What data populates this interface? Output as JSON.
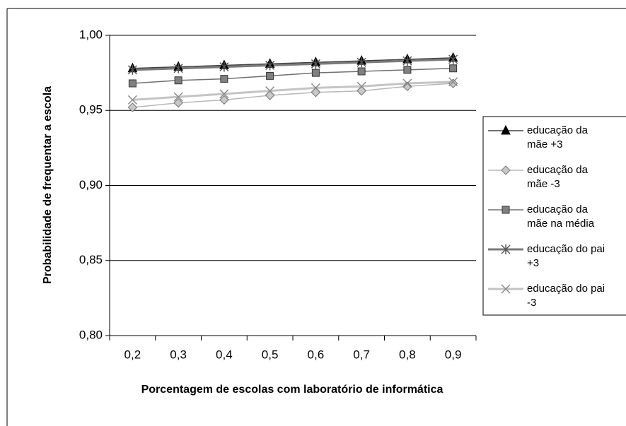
{
  "chart_data": {
    "type": "line",
    "y_label": "Probabilidade de frequentar a escola",
    "x_label": "Porcentagem de escolas com laboratório de informática",
    "categories": [
      "0,2",
      "0,3",
      "0,4",
      "0,5",
      "0,6",
      "0,7",
      "0,8",
      "0,9"
    ],
    "ylim": [
      0.8,
      1.0
    ],
    "yticks": [
      {
        "value": 0.8,
        "label": "0,80"
      },
      {
        "value": 0.85,
        "label": "0,85"
      },
      {
        "value": 0.9,
        "label": "0,90"
      },
      {
        "value": 0.95,
        "label": "0,95"
      },
      {
        "value": 1.0,
        "label": "1,00"
      }
    ],
    "grid": true,
    "legend": "right",
    "series": [
      {
        "name": "educação da mãe +3",
        "color": "#000000",
        "line_color": "#404040",
        "line_width": 1.5,
        "marker": "triangle",
        "values": [
          0.978,
          0.979,
          0.98,
          0.981,
          0.982,
          0.983,
          0.984,
          0.985
        ]
      },
      {
        "name": "educação da mãe -3",
        "color": "#c8c8c8",
        "line_color": "#b8b8b8",
        "line_width": 1.5,
        "marker": "diamond",
        "values": [
          0.952,
          0.955,
          0.957,
          0.96,
          0.962,
          0.963,
          0.966,
          0.968
        ]
      },
      {
        "name": "educação da mãe na média",
        "color": "#808080",
        "line_color": "#707070",
        "line_width": 1.5,
        "marker": "square",
        "values": [
          0.968,
          0.97,
          0.971,
          0.973,
          0.975,
          0.976,
          0.977,
          0.978
        ]
      },
      {
        "name": "educação do pai +3",
        "color": "#555555",
        "line_color": "#7a7a7a",
        "line_width": 3,
        "marker": "asterisk",
        "values": [
          0.977,
          0.978,
          0.979,
          0.98,
          0.981,
          0.982,
          0.983,
          0.984
        ]
      },
      {
        "name": "educação do pai -3",
        "color": "#8a8a8a",
        "line_color": "#c4c4c4",
        "line_width": 3,
        "marker": "cross",
        "values": [
          0.957,
          0.959,
          0.961,
          0.963,
          0.965,
          0.966,
          0.968,
          0.969
        ]
      }
    ]
  }
}
